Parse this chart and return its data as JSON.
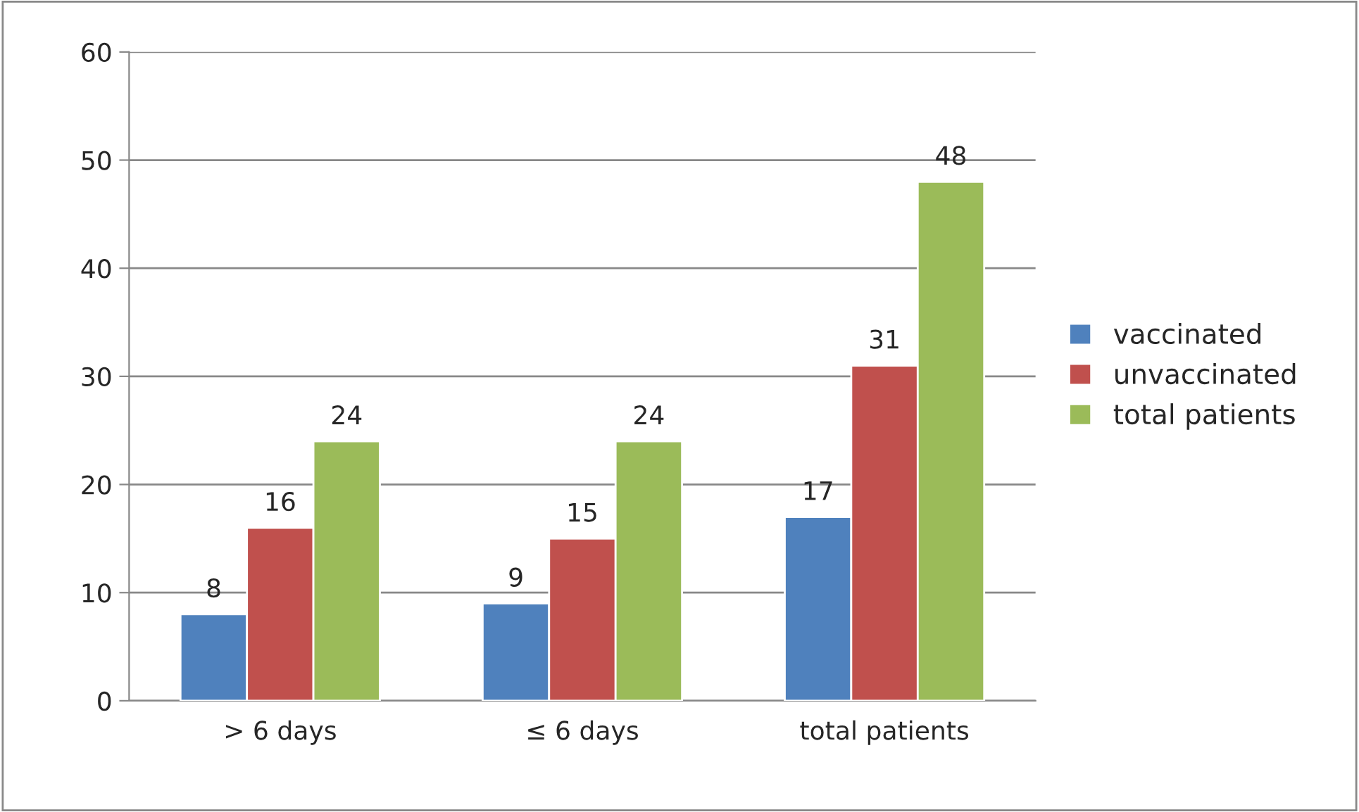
{
  "chart_data": {
    "type": "bar",
    "categories": [
      "> 6 days",
      "≤ 6 days",
      "total patients"
    ],
    "series": [
      {
        "name": "vaccinated",
        "color": "#4f81bd",
        "values": [
          8,
          9,
          17
        ]
      },
      {
        "name": "unvaccinated",
        "color": "#c0504d",
        "values": [
          16,
          15,
          31
        ]
      },
      {
        "name": "total patients",
        "color": "#9bbb59",
        "values": [
          24,
          24,
          48
        ]
      }
    ],
    "ylim": [
      0,
      60
    ],
    "yticks": [
      0,
      10,
      20,
      30,
      40,
      50,
      60
    ],
    "grid": "y",
    "legend": "right",
    "data_labels": true
  }
}
